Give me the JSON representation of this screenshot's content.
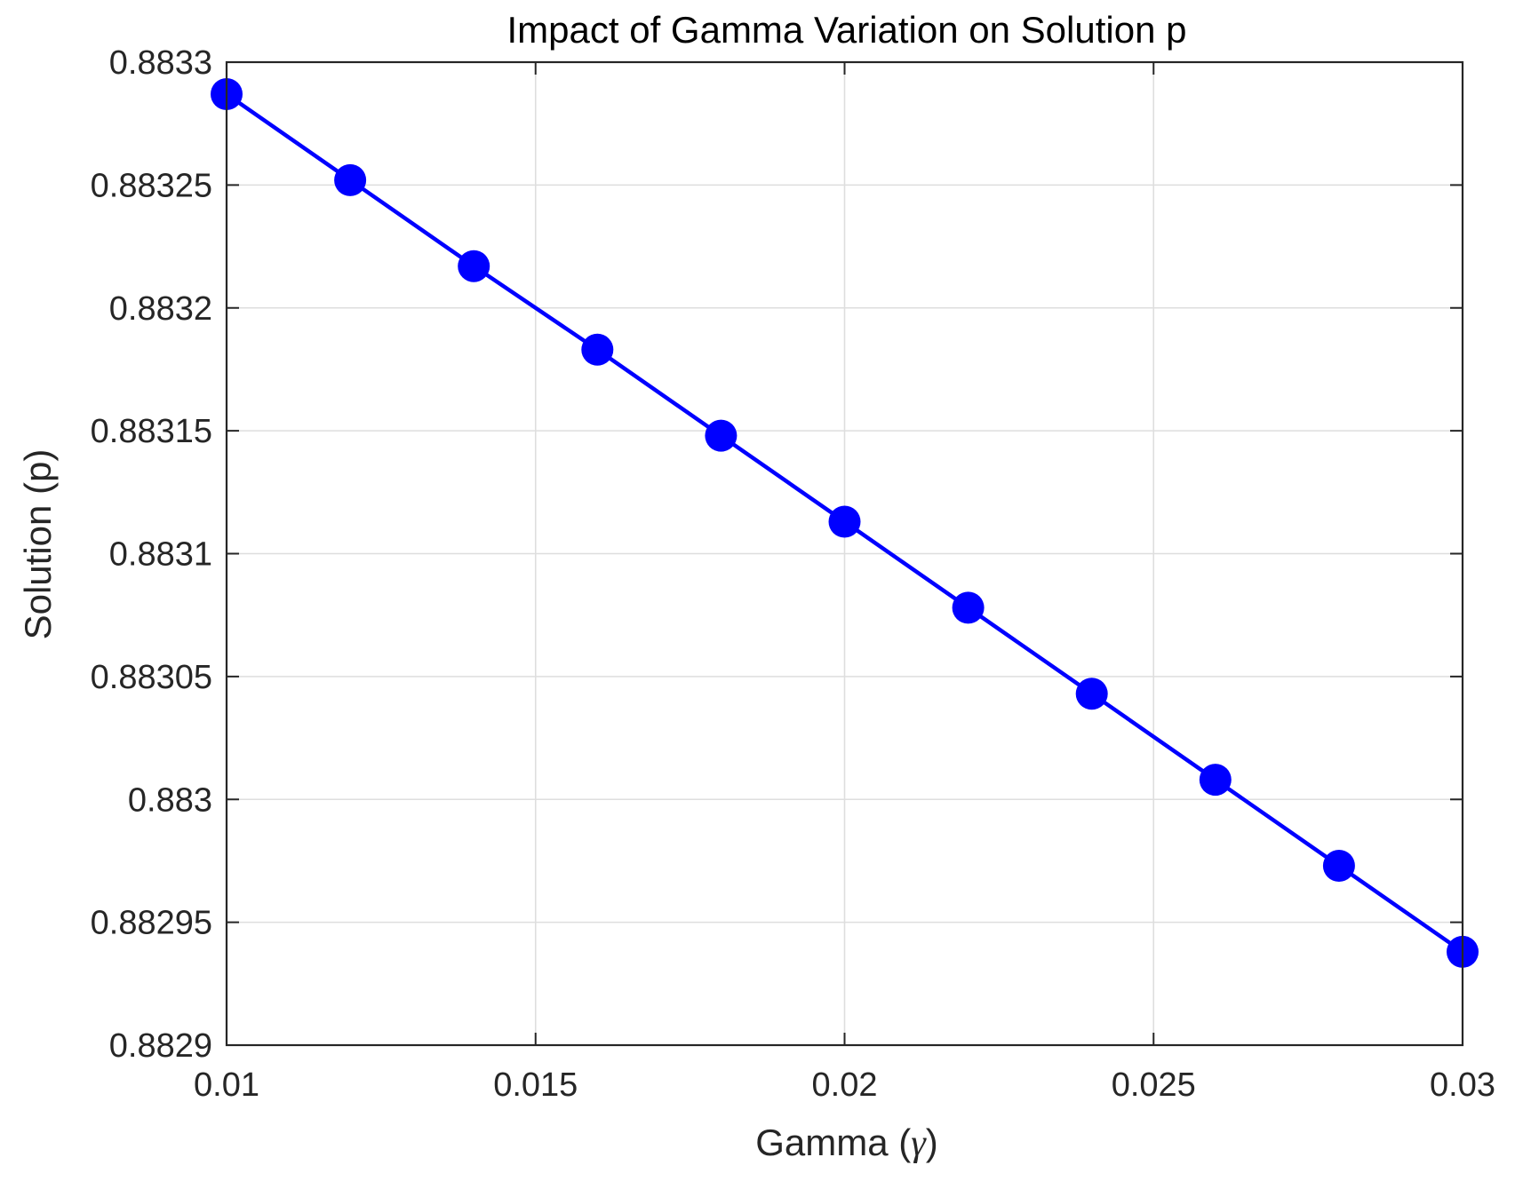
{
  "chart_data": {
    "type": "line",
    "title": "Impact of Gamma Variation on Solution p",
    "xlabel": "Gamma (",
    "xlabel_symbol": "γ",
    "xlabel_close": ")",
    "ylabel": "Solution (p)",
    "xlim": [
      0.01,
      0.03
    ],
    "ylim": [
      0.8829,
      0.8833
    ],
    "grid": true,
    "x_ticks": [
      0.01,
      0.015,
      0.02,
      0.025,
      0.03
    ],
    "x_tick_labels": [
      "0.01",
      "0.015",
      "0.02",
      "0.025",
      "0.03"
    ],
    "y_ticks": [
      0.8829,
      0.88295,
      0.883,
      0.88305,
      0.8831,
      0.88315,
      0.8832,
      0.88325,
      0.8833
    ],
    "y_tick_labels": [
      "0.8829",
      "0.88295",
      "0.883",
      "0.88305",
      "0.8831",
      "0.88315",
      "0.8832",
      "0.88325",
      "0.8833"
    ],
    "series": [
      {
        "color": "#0000ff",
        "marker": "circle",
        "x": [
          0.01,
          0.012,
          0.014,
          0.016,
          0.018,
          0.02,
          0.022,
          0.024,
          0.026,
          0.028,
          0.03
        ],
        "y": [
          0.883287,
          0.883252,
          0.883217,
          0.883183,
          0.883148,
          0.883113,
          0.883078,
          0.883043,
          0.883008,
          0.882973,
          0.882938
        ]
      }
    ]
  }
}
